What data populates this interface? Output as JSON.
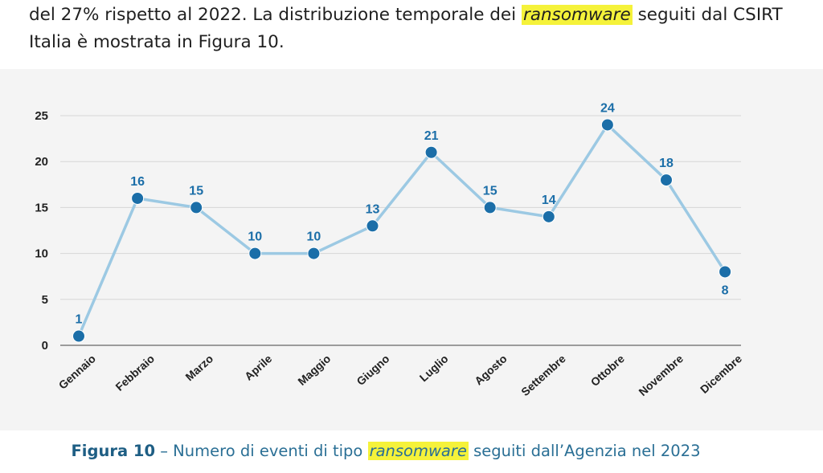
{
  "intro": {
    "line1_prefix": "del 27% rispetto al 2022. La distribuzione temporale dei",
    "line1_highlight": "ransomware",
    "line1_suffix": "seguiti dal CSIRT",
    "line2": "Italia è mostrata in Figura 10."
  },
  "caption": {
    "label": "Figura 10",
    "text_before": "– Numero di eventi di tipo",
    "highlight": "ransomware",
    "text_after": "seguiti dall’Agenzia nel 2023"
  },
  "colors": {
    "line": "#9cc9e3",
    "marker": "#1b6ea8",
    "data_label": "#1b6ea8",
    "highlight": "#f5f23a"
  },
  "chart_data": {
    "type": "line",
    "categories": [
      "Gennaio",
      "Febbraio",
      "Marzo",
      "Aprile",
      "Maggio",
      "Giugno",
      "Luglio",
      "Agosto",
      "Settembre",
      "Ottobre",
      "Novembre",
      "Dicembre"
    ],
    "values": [
      1,
      16,
      15,
      10,
      10,
      13,
      21,
      15,
      14,
      24,
      18,
      8
    ],
    "ylim": [
      0,
      25
    ],
    "yticks": [
      0,
      5,
      10,
      15,
      20,
      25
    ],
    "grid": true,
    "legend": "none"
  }
}
